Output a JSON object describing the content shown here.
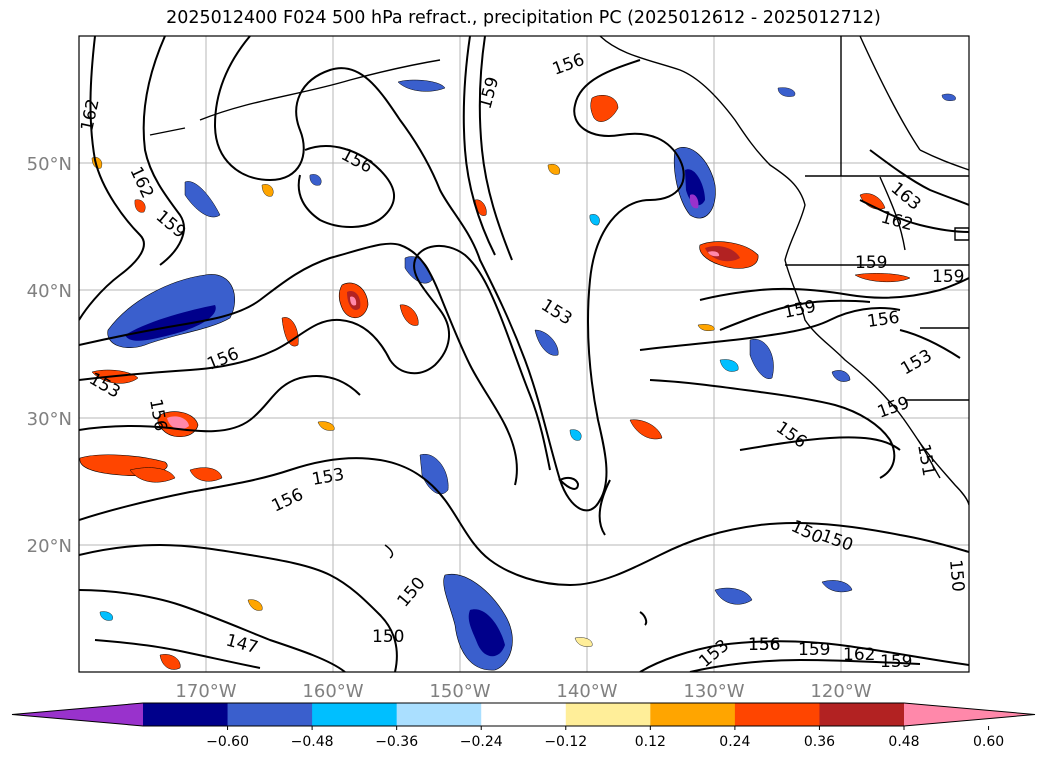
{
  "title": "2025012400 F024 500 hPa refract., precipitation PC (2025012612 - 2025012712)",
  "map": {
    "lat_labels": [
      "50°N",
      "40°N",
      "30°N",
      "20°N"
    ],
    "lon_labels": [
      "170°W",
      "160°W",
      "150°W",
      "140°W",
      "130°W",
      "120°W"
    ],
    "contour_labels": [
      "162",
      "162",
      "159",
      "156",
      "156",
      "153",
      "156",
      "153",
      "156",
      "150",
      "147",
      "150",
      "159",
      "156",
      "153",
      "159",
      "156",
      "163",
      "162",
      "159",
      "159",
      "156",
      "153",
      "159",
      "156",
      "150",
      "153",
      "156",
      "159",
      "162",
      "159",
      "150",
      "150",
      "151"
    ]
  },
  "colorbar": {
    "colors": [
      "#9932cc",
      "#00008b",
      "#3a5fcd",
      "#00bfff",
      "#aadfff",
      "#ffffff",
      "#ffee99",
      "#ffa500",
      "#ff4500",
      "#b22222",
      "#ff88aa"
    ],
    "tick_labels": [
      "−0.60",
      "−0.48",
      "−0.36",
      "−0.24",
      "−0.12",
      "0.12",
      "0.24",
      "0.36",
      "0.48",
      "0.60"
    ]
  }
}
